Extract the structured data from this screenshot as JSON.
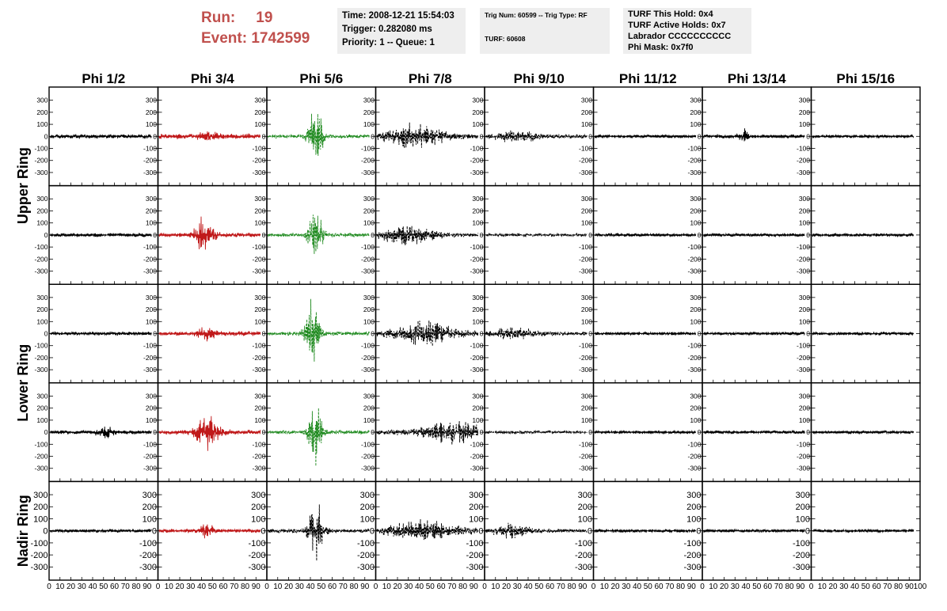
{
  "header": {
    "run_label": "Run:",
    "run_value": "19",
    "event_label": "Event:",
    "event_value": "1742599",
    "time_box": {
      "time": "Time: 2008-12-21 15:54:03",
      "trigger": "Trigger: 0.282080 ms",
      "priority": "Priority: 1 -- Queue: 1"
    },
    "trig_box": {
      "trig_num": "Trig Num: 60599 -- Trig Type: RF",
      "turf": "TURF: 60608"
    },
    "turf_box": {
      "this_hold": "TURF This Hold: 0x4",
      "active_holds": "TURF Active Holds: 0x7",
      "labrador": "Labrador CCCCCCCCCC",
      "phi_mask": "Phi Mask: 0x7f0"
    }
  },
  "colors": {
    "trace_default": "#000000",
    "trace_red": "#c0191a",
    "trace_green": "#1f8a1f",
    "header_accent": "#c0504d",
    "info_bg": "#eeeeee"
  },
  "chart_data": {
    "type": "line",
    "columns": [
      "Phi 1/2",
      "Phi 3/4",
      "Phi 5/6",
      "Phi 7/8",
      "Phi 9/10",
      "Phi 11/12",
      "Phi 13/14",
      "Phi 15/16"
    ],
    "rows": [
      "Upper Ring",
      "Upper Ring",
      "Lower Ring",
      "Lower Ring",
      "Nadir Ring"
    ],
    "row_labels": [
      "Upper Ring",
      "Lower Ring",
      "Nadir Ring"
    ],
    "xlim": [
      0,
      100
    ],
    "ylim": [
      -370,
      370
    ],
    "x_ticks": [
      0,
      10,
      20,
      30,
      40,
      50,
      60,
      70,
      80,
      90
    ],
    "last_x_tick": "100",
    "y_ticks": [
      -300,
      -200,
      -100,
      0,
      100,
      200,
      300
    ],
    "grid": false,
    "traces": [
      [
        {
          "amp": 20,
          "style": "solid",
          "color": "black"
        },
        {
          "amp": 25,
          "burst_center": 48,
          "burst_amp": 40,
          "burst_width": 8,
          "style": "solid",
          "color": "red"
        },
        {
          "amp": 20,
          "burst_center": 45,
          "burst_amp": 270,
          "burst_width": 6,
          "style": "dashed",
          "color": "green"
        },
        {
          "amp": 25,
          "burst_center": 35,
          "burst_amp": 95,
          "burst_width": 25,
          "style": "dashed",
          "color": "black"
        },
        {
          "amp": 20,
          "burst_center": 30,
          "burst_amp": 40,
          "burst_width": 20,
          "style": "dashed",
          "color": "black"
        },
        {
          "amp": 15,
          "style": "solid",
          "color": "black"
        },
        {
          "amp": 18,
          "burst_center": 38,
          "burst_amp": 60,
          "burst_width": 4,
          "style": "solid",
          "color": "black"
        },
        {
          "amp": 15,
          "style": "solid",
          "color": "black"
        }
      ],
      [
        {
          "amp": 18,
          "style": "solid",
          "color": "black"
        },
        {
          "amp": 20,
          "burst_center": 42,
          "burst_amp": 150,
          "burst_width": 8,
          "style": "solid",
          "color": "red"
        },
        {
          "amp": 20,
          "burst_center": 45,
          "burst_amp": 280,
          "burst_width": 6,
          "style": "dashed",
          "color": "green"
        },
        {
          "amp": 20,
          "burst_center": 30,
          "burst_amp": 90,
          "burst_width": 22,
          "style": "dashed",
          "color": "black"
        },
        {
          "amp": 15,
          "style": "dashed",
          "color": "black"
        },
        {
          "amp": 15,
          "style": "solid",
          "color": "black"
        },
        {
          "amp": 15,
          "style": "solid",
          "color": "black"
        },
        {
          "amp": 15,
          "style": "solid",
          "color": "black"
        }
      ],
      [
        {
          "amp": 18,
          "style": "solid",
          "color": "black"
        },
        {
          "amp": 22,
          "burst_center": 45,
          "burst_amp": 55,
          "burst_width": 8,
          "style": "solid",
          "color": "red"
        },
        {
          "amp": 20,
          "burst_center": 42,
          "burst_amp": 320,
          "burst_width": 6,
          "style": "dashed",
          "color": "green"
        },
        {
          "amp": 25,
          "burst_center": 45,
          "burst_amp": 90,
          "burst_width": 25,
          "style": "dashed",
          "color": "black"
        },
        {
          "amp": 20,
          "burst_center": 25,
          "burst_amp": 45,
          "burst_width": 20,
          "style": "dashed",
          "color": "black"
        },
        {
          "amp": 15,
          "style": "solid",
          "color": "black"
        },
        {
          "amp": 15,
          "style": "solid",
          "color": "black"
        },
        {
          "amp": 15,
          "style": "solid",
          "color": "black"
        }
      ],
      [
        {
          "amp": 18,
          "burst_center": 52,
          "burst_amp": 40,
          "burst_width": 8,
          "style": "solid",
          "color": "black"
        },
        {
          "amp": 22,
          "burst_center": 45,
          "burst_amp": 150,
          "burst_width": 10,
          "style": "solid",
          "color": "red"
        },
        {
          "amp": 20,
          "burst_center": 44,
          "burst_amp": 280,
          "burst_width": 6,
          "style": "dashed",
          "color": "green"
        },
        {
          "amp": 25,
          "burst_center": 70,
          "burst_amp": 85,
          "burst_width": 28,
          "style": "dashed",
          "color": "black"
        },
        {
          "amp": 15,
          "style": "dashed",
          "color": "black"
        },
        {
          "amp": 15,
          "style": "solid",
          "color": "black"
        },
        {
          "amp": 15,
          "style": "solid",
          "color": "black"
        },
        {
          "amp": 15,
          "style": "solid",
          "color": "black"
        }
      ],
      [
        {
          "amp": 15,
          "style": "solid",
          "color": "black"
        },
        {
          "amp": 18,
          "burst_center": 45,
          "burst_amp": 70,
          "burst_width": 5,
          "style": "solid",
          "color": "red"
        },
        {
          "amp": 20,
          "burst_center": 45,
          "burst_amp": 250,
          "burst_width": 7,
          "style": "dashed",
          "color": "black"
        },
        {
          "amp": 25,
          "burst_center": 45,
          "burst_amp": 80,
          "burst_width": 30,
          "style": "dashed",
          "color": "black"
        },
        {
          "amp": 20,
          "burst_center": 25,
          "burst_amp": 55,
          "burst_width": 15,
          "style": "dashed",
          "color": "black"
        },
        {
          "amp": 15,
          "style": "solid",
          "color": "black"
        },
        {
          "amp": 15,
          "style": "solid",
          "color": "black"
        },
        {
          "amp": 15,
          "style": "solid",
          "color": "black"
        }
      ]
    ]
  }
}
